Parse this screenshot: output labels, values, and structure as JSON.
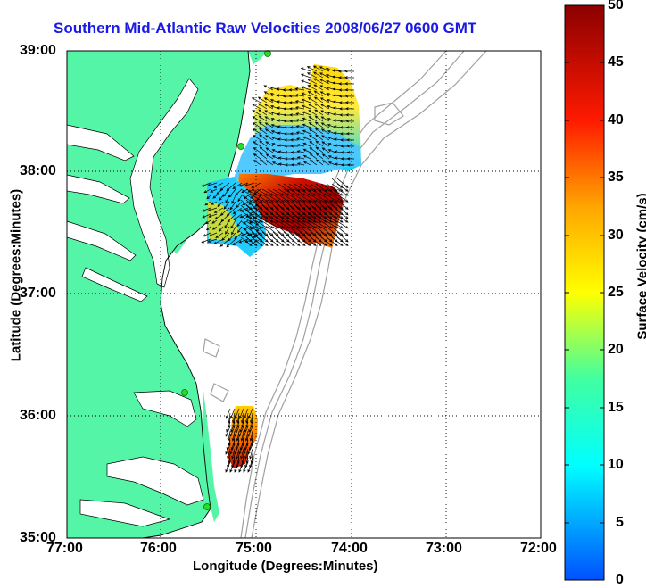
{
  "title": "Southern Mid-Atlantic Raw Velocities 2008/06/27 0600 GMT",
  "axes": {
    "xlabel": "Longitude (Degrees:Minutes)",
    "ylabel": "Latitude (Degrees:Minutes)",
    "xticks": [
      "77:00",
      "76:00",
      "75:00",
      "74:00",
      "73:00",
      "72:00"
    ],
    "yticks": [
      "39:00",
      "38:00",
      "37:00",
      "36:00",
      "35:00"
    ]
  },
  "colorbar": {
    "label": "Surface Velocity (cm/s)",
    "ticks": [
      "50",
      "45",
      "40",
      "35",
      "30",
      "25",
      "20",
      "15",
      "10",
      "5",
      "0"
    ],
    "range": [
      0,
      50
    ]
  },
  "colors": {
    "land": "#55f5a8",
    "water": "#ffffff",
    "title": "#1a1ae6",
    "bathymetry": "#a0a0a0"
  }
}
